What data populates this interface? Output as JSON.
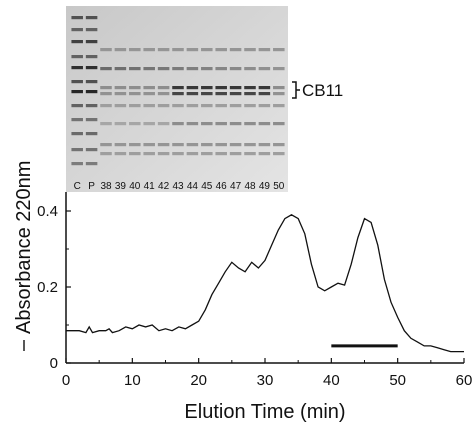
{
  "chart_data": {
    "type": "line",
    "xlabel": "Elution Time (min)",
    "ylabel": "Absorbance 220nm",
    "xlim": [
      0,
      60
    ],
    "ylim": [
      0,
      0.45
    ],
    "x_ticks": [
      "0",
      "10",
      "20",
      "30",
      "40",
      "50",
      "60"
    ],
    "y_ticks": [
      "0",
      "0.2",
      "0.4"
    ],
    "series": [
      {
        "points": [
          [
            0,
            0.085
          ],
          [
            2,
            0.085
          ],
          [
            3,
            0.08
          ],
          [
            3.5,
            0.095
          ],
          [
            4,
            0.08
          ],
          [
            5,
            0.085
          ],
          [
            6,
            0.085
          ],
          [
            6.5,
            0.09
          ],
          [
            7,
            0.08
          ],
          [
            8,
            0.085
          ],
          [
            9,
            0.095
          ],
          [
            10,
            0.09
          ],
          [
            11,
            0.1
          ],
          [
            12,
            0.095
          ],
          [
            13,
            0.1
          ],
          [
            14,
            0.085
          ],
          [
            15,
            0.09
          ],
          [
            16,
            0.085
          ],
          [
            17,
            0.095
          ],
          [
            18,
            0.09
          ],
          [
            19,
            0.1
          ],
          [
            20,
            0.11
          ],
          [
            21,
            0.14
          ],
          [
            22,
            0.18
          ],
          [
            23,
            0.21
          ],
          [
            24,
            0.24
          ],
          [
            25,
            0.265
          ],
          [
            26,
            0.25
          ],
          [
            27,
            0.24
          ],
          [
            28,
            0.265
          ],
          [
            29,
            0.25
          ],
          [
            30,
            0.27
          ],
          [
            31,
            0.31
          ],
          [
            32,
            0.35
          ],
          [
            33,
            0.38
          ],
          [
            34,
            0.39
          ],
          [
            35,
            0.38
          ],
          [
            36,
            0.34
          ],
          [
            37,
            0.26
          ],
          [
            38,
            0.2
          ],
          [
            39,
            0.19
          ],
          [
            40,
            0.2
          ],
          [
            41,
            0.21
          ],
          [
            42,
            0.205
          ],
          [
            43,
            0.26
          ],
          [
            44,
            0.33
          ],
          [
            45,
            0.38
          ],
          [
            46,
            0.37
          ],
          [
            47,
            0.31
          ],
          [
            48,
            0.22
          ],
          [
            49,
            0.16
          ],
          [
            50,
            0.12
          ],
          [
            51,
            0.085
          ],
          [
            52,
            0.065
          ],
          [
            53,
            0.055
          ],
          [
            54,
            0.045
          ],
          [
            55,
            0.045
          ],
          [
            56,
            0.04
          ],
          [
            57,
            0.035
          ],
          [
            58,
            0.03
          ],
          [
            59,
            0.03
          ],
          [
            60,
            0.03
          ]
        ]
      }
    ],
    "bar_marker": {
      "x_start": 40,
      "x_end": 50,
      "y": 0.045
    },
    "inset_gel": {
      "lanes": [
        "C",
        "P",
        "38",
        "39",
        "40",
        "41",
        "42",
        "43",
        "44",
        "45",
        "46",
        "47",
        "48",
        "49",
        "50"
      ],
      "annotation": "CB11"
    }
  }
}
